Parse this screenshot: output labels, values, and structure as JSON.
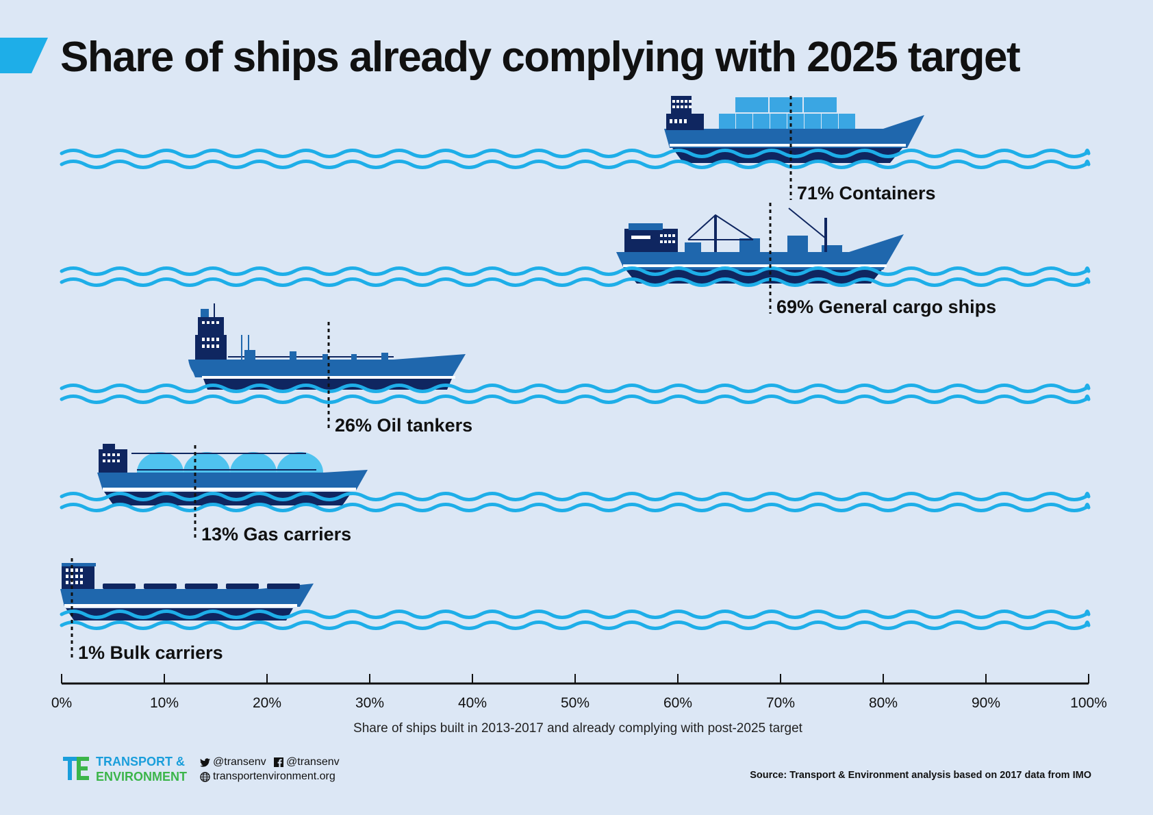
{
  "title": "Share of ships already complying with 2025 target",
  "colors": {
    "background": "#dce7f5",
    "accent": "#1eaee8",
    "wave": "#1eaee8",
    "hull": "#1f67ad",
    "hull_dark": "#0f2660",
    "container": "#3aa6e3",
    "gas_tank": "#4fc3ef",
    "logo_blue": "#1a9edb",
    "logo_green": "#3bb54a"
  },
  "chart_data": {
    "type": "bar",
    "xlabel": "Share of ships built in 2013-2017 and already complying with post-2025 target",
    "xlim": [
      0,
      100
    ],
    "x_ticks": [
      "0%",
      "10%",
      "20%",
      "30%",
      "40%",
      "50%",
      "60%",
      "70%",
      "80%",
      "90%",
      "100%"
    ],
    "categories": [
      "Containers",
      "General cargo ships",
      "Oil tankers",
      "Gas carriers",
      "Bulk carriers"
    ],
    "values": [
      71,
      69,
      26,
      13,
      1
    ],
    "labels": [
      "71% Containers",
      "69% General cargo ships",
      "26% Oil tankers",
      "13% Gas carriers",
      "1% Bulk carriers"
    ],
    "ship_icons": [
      "container-ship-icon",
      "general-cargo-ship-icon",
      "oil-tanker-icon",
      "gas-carrier-icon",
      "bulk-carrier-icon"
    ]
  },
  "footer": {
    "logo_line1": "TRANSPORT &",
    "logo_line2": "ENVIRONMENT",
    "twitter": "@transenv",
    "facebook": "@transenv",
    "website": "transportenvironment.org",
    "twitter_icon": "twitter-icon",
    "facebook_icon": "facebook-icon",
    "web_icon": "globe-icon",
    "source": "Source: Transport & Environment analysis based on 2017 data from IMO"
  }
}
